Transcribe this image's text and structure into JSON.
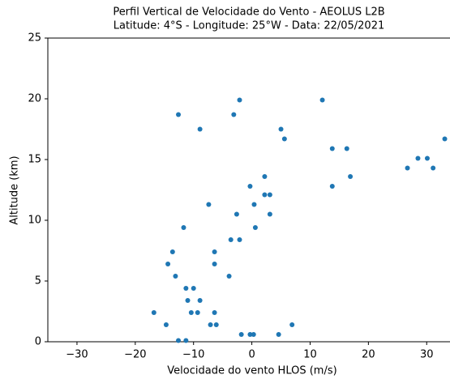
{
  "chart_data": {
    "type": "scatter",
    "title": "Perfil Vertical de Velocidade do Vento - AEOLUS L2B",
    "subtitle": "Latitude: 4°S - Longitude: 25°W - Data: 22/05/2021",
    "x_label": "Velocidade do vento HLOS (m/s)",
    "y_label": "Altitude (km)",
    "color": "#1f77b4",
    "x": [
      -12.6,
      -2.1,
      -8.9,
      -3.1,
      12.1,
      5.0,
      5.6,
      33.1,
      13.8,
      16.3,
      28.5,
      30.1,
      26.7,
      31.1,
      2.2,
      16.9,
      -0.3,
      13.8,
      2.2,
      3.1,
      -7.4,
      0.4,
      -2.6,
      3.1,
      -11.7,
      0.6,
      -3.6,
      -2.1,
      -13.6,
      -6.4,
      -14.4,
      -6.4,
      -13.1,
      -3.9,
      -11.3,
      -10.0,
      -11.0,
      -8.9,
      -16.8,
      -10.4,
      -9.3,
      -6.4,
      -14.7,
      -7.1,
      -6.1,
      6.9,
      -1.8,
      -0.3,
      0.3,
      4.6,
      -12.6,
      -11.3
    ],
    "values": [
      18.7,
      19.9,
      17.5,
      18.7,
      19.9,
      17.5,
      16.7,
      16.7,
      15.9,
      15.9,
      15.1,
      15.1,
      14.3,
      14.3,
      13.6,
      13.6,
      12.8,
      12.8,
      12.1,
      12.1,
      11.3,
      11.3,
      10.5,
      10.5,
      9.4,
      9.4,
      8.4,
      8.4,
      7.4,
      7.4,
      6.4,
      6.4,
      5.4,
      5.4,
      4.4,
      4.4,
      3.4,
      3.4,
      2.4,
      2.4,
      2.4,
      2.4,
      1.4,
      1.4,
      1.4,
      1.4,
      0.6,
      0.6,
      0.6,
      0.6,
      0.1,
      0.1
    ],
    "xlim": [
      -35,
      34
    ],
    "ylim": [
      0,
      25
    ],
    "xticks": [
      {
        "value": -30,
        "label": "−30"
      },
      {
        "value": -20,
        "label": "−20"
      },
      {
        "value": -10,
        "label": "−10"
      },
      0,
      10,
      20,
      30
    ],
    "yticks": [
      0,
      5,
      10,
      15,
      20,
      25
    ]
  }
}
